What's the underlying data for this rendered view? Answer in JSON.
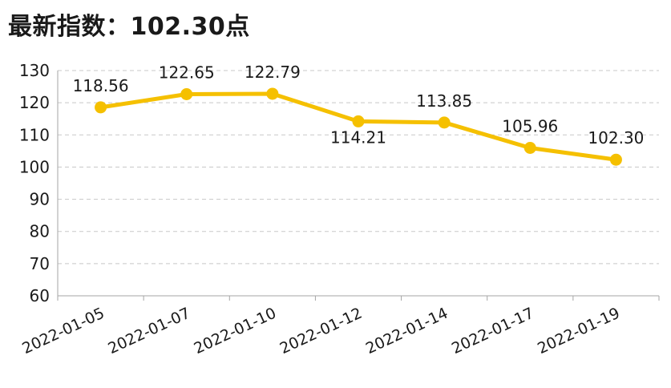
{
  "header": {
    "title_prefix": "最新指数：",
    "title_value": "102.30",
    "title_suffix": "点"
  },
  "chart_data": {
    "type": "line",
    "title": "最新指数：102.30点",
    "xlabel": "",
    "ylabel": "",
    "categories": [
      "2022-01-05",
      "2022-01-07",
      "2022-01-10",
      "2022-01-12",
      "2022-01-14",
      "2022-01-17",
      "2022-01-19"
    ],
    "series": [
      {
        "values": [
          118.56,
          122.65,
          122.79,
          114.21,
          113.85,
          105.96,
          102.3
        ]
      }
    ],
    "data_labels": [
      "118.56",
      "122.65",
      "122.79",
      "114.21",
      "113.85",
      "105.96",
      "102.30"
    ],
    "ylim": [
      60,
      130
    ],
    "yticks": [
      60,
      70,
      80,
      90,
      100,
      110,
      120,
      130
    ],
    "grid": true,
    "legend": "none",
    "colors": {
      "line": "#F5C000",
      "grid": "#C8C8C8",
      "axis": "#A6A6A6"
    }
  }
}
